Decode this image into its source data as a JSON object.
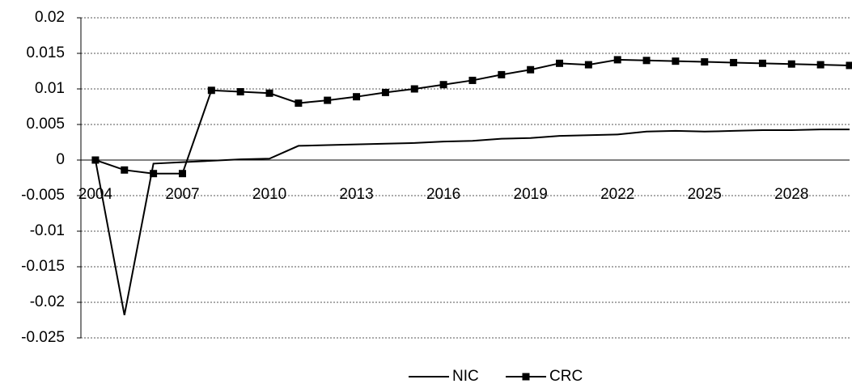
{
  "chart_data": {
    "type": "line",
    "categories": [
      "2004",
      null,
      null,
      "2007",
      null,
      null,
      "2010",
      null,
      null,
      "2013",
      null,
      null,
      "2016",
      null,
      null,
      "2019",
      null,
      null,
      "2022",
      null,
      null,
      "2025",
      null,
      null,
      "2028",
      null,
      null
    ],
    "series": [
      {
        "name": "NIC",
        "color": "#000000",
        "marker": "none",
        "values": [
          0,
          -0.0218,
          -0.0005,
          -0.0003,
          -0.0001,
          0.0001,
          0.0002,
          0.002,
          0.0021,
          0.0022,
          0.0023,
          0.0024,
          0.0026,
          0.0027,
          0.003,
          0.0031,
          0.0034,
          0.0035,
          0.0036,
          0.004,
          0.0041,
          0.004,
          0.0041,
          0.0042,
          0.0042,
          0.0043,
          0.0043
        ]
      },
      {
        "name": "CRC",
        "color": "#000000",
        "marker": "square",
        "values": [
          0,
          -0.0014,
          -0.0019,
          -0.0019,
          0.0098,
          0.0096,
          0.0094,
          0.008,
          0.0084,
          0.0089,
          0.0095,
          0.01,
          0.0106,
          0.0112,
          0.012,
          0.0127,
          0.0136,
          0.0134,
          0.0141,
          0.014,
          0.0139,
          0.0138,
          0.0137,
          0.0136,
          0.0135,
          0.0134,
          0.0133
        ]
      }
    ],
    "ylim": [
      -0.025,
      0.02
    ],
    "yticks": [
      -0.025,
      -0.02,
      -0.015,
      -0.01,
      -0.005,
      0,
      0.005,
      0.01,
      0.015,
      0.02
    ],
    "grid": true,
    "legend": "bottom"
  }
}
